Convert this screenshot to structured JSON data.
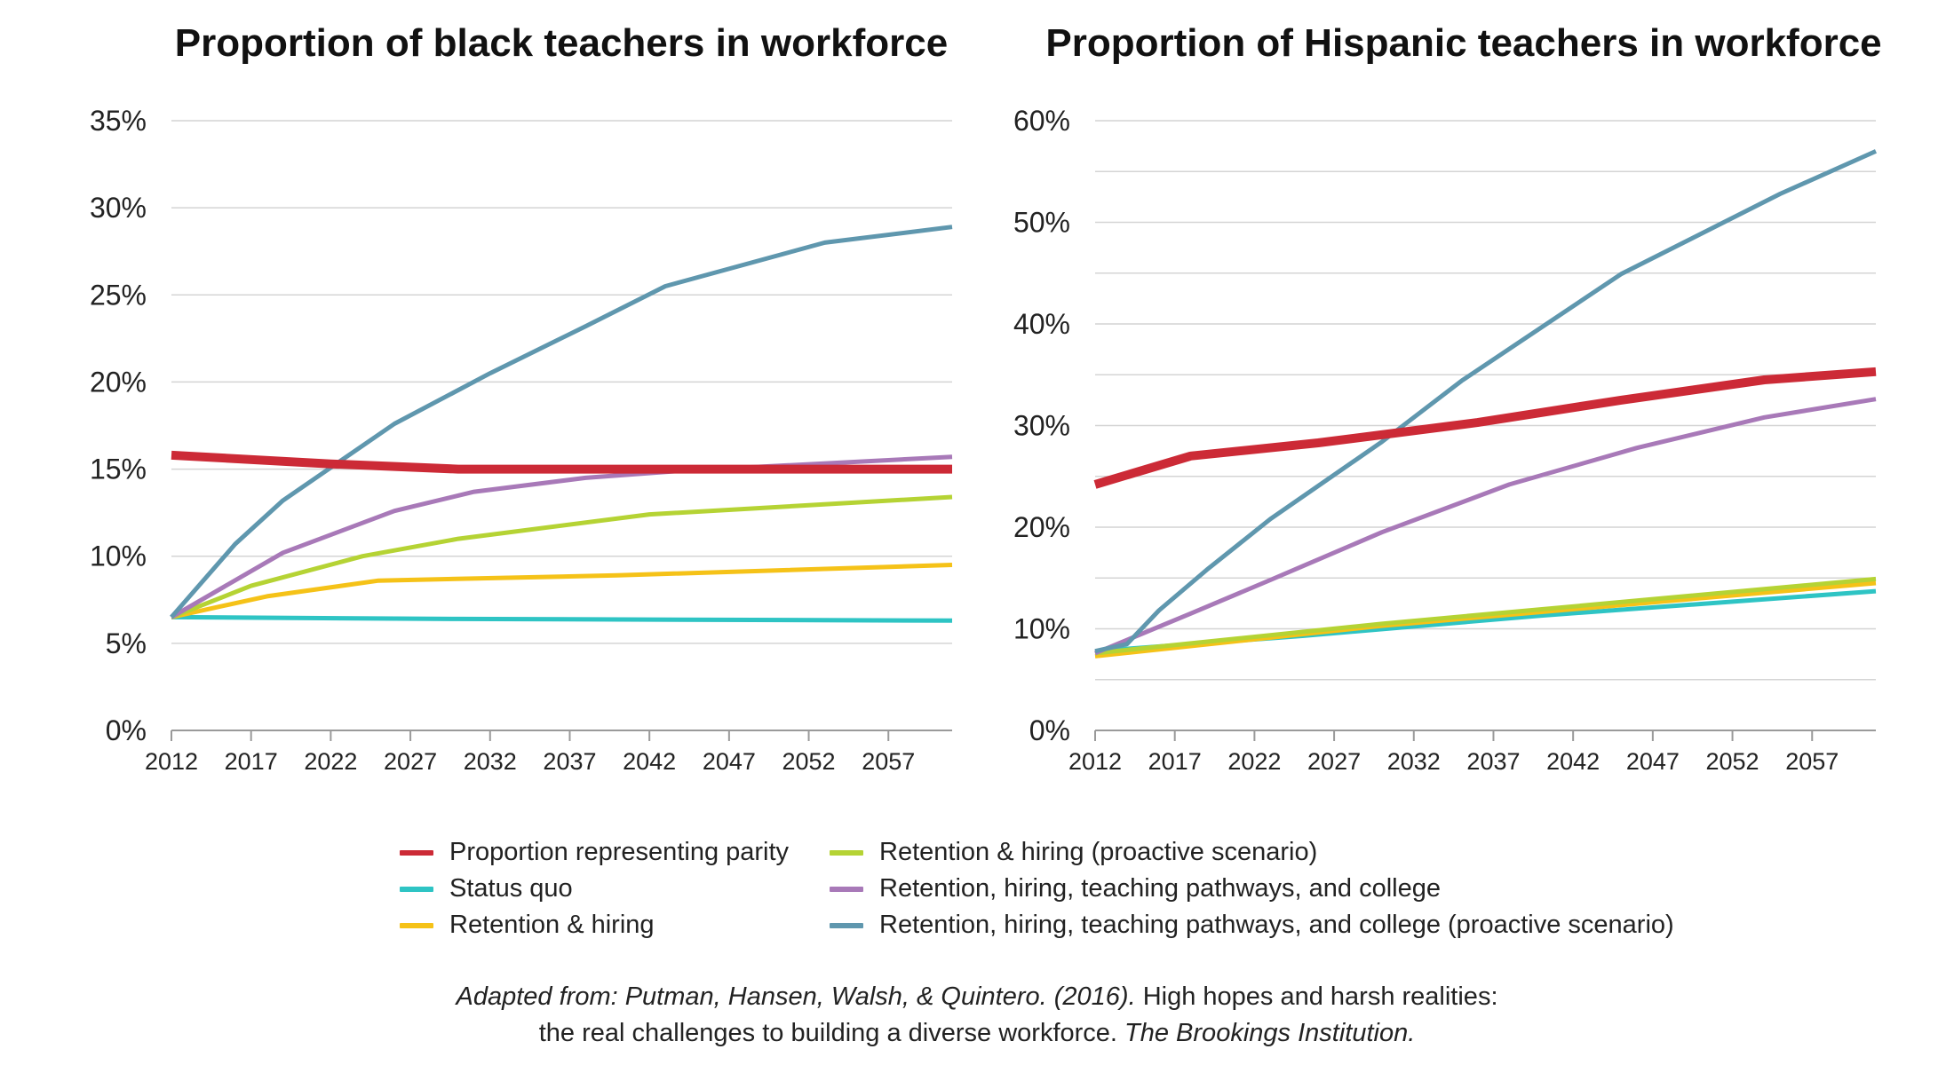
{
  "chart_data": [
    {
      "type": "line",
      "title": "Proportion of black teachers in workforce",
      "xlabel": "",
      "ylabel": "",
      "x_ticks": [
        "2012",
        "2017",
        "2022",
        "2027",
        "2032",
        "2037",
        "2042",
        "2047",
        "2052",
        "2057"
      ],
      "y_ticks": [
        "0%",
        "5%",
        "10%",
        "15%",
        "20%",
        "25%",
        "30%",
        "35%"
      ],
      "xlim": [
        2012,
        2061
      ],
      "ylim": [
        0,
        35
      ],
      "grid": "horizontal",
      "series": [
        {
          "name": "Proportion representing parity",
          "color": "#cc2a36",
          "x": [
            2012,
            2022,
            2030,
            2044,
            2061
          ],
          "y": [
            15.8,
            15.3,
            15.0,
            15.0,
            15.0
          ]
        },
        {
          "name": "Status quo",
          "color": "#2ec4c4",
          "x": [
            2012,
            2030,
            2061
          ],
          "y": [
            6.5,
            6.4,
            6.3
          ]
        },
        {
          "name": "Retention & hiring",
          "color": "#f5c218",
          "x": [
            2012,
            2018,
            2025,
            2040,
            2061
          ],
          "y": [
            6.5,
            7.7,
            8.6,
            8.9,
            9.5
          ]
        },
        {
          "name": "Retention & hiring (proactive scenario)",
          "color": "#b5d334",
          "x": [
            2012,
            2017,
            2024,
            2030,
            2042,
            2061
          ],
          "y": [
            6.5,
            8.3,
            10.0,
            11.0,
            12.4,
            13.4
          ]
        },
        {
          "name": "Retention, hiring, teaching pathways, and college",
          "color": "#a879b8",
          "x": [
            2012,
            2019,
            2026,
            2031,
            2038,
            2044,
            2061
          ],
          "y": [
            6.5,
            10.2,
            12.6,
            13.7,
            14.5,
            14.9,
            15.7
          ]
        },
        {
          "name": "Retention, hiring, teaching pathways, and college (proactive scenario)",
          "color": "#5f97ae",
          "x": [
            2012,
            2016,
            2019,
            2026,
            2032,
            2038,
            2043,
            2053,
            2061
          ],
          "y": [
            6.5,
            10.7,
            13.2,
            17.6,
            20.5,
            23.2,
            25.5,
            28.0,
            28.9
          ]
        }
      ]
    },
    {
      "type": "line",
      "title": "Proportion of Hispanic teachers in workforce",
      "xlabel": "",
      "ylabel": "",
      "x_ticks": [
        "2012",
        "2017",
        "2022",
        "2027",
        "2032",
        "2037",
        "2042",
        "2047",
        "2052",
        "2057"
      ],
      "y_ticks": [
        "0%",
        "10%",
        "20%",
        "30%",
        "40%",
        "50%",
        "60%"
      ],
      "xlim": [
        2012,
        2061
      ],
      "ylim": [
        0,
        60
      ],
      "grid": "horizontal",
      "series": [
        {
          "name": "Proportion representing parity",
          "color": "#cc2a36",
          "x": [
            2012,
            2018,
            2026,
            2036,
            2045,
            2054,
            2061
          ],
          "y": [
            24.2,
            27.0,
            28.3,
            30.3,
            32.5,
            34.5,
            35.3
          ]
        },
        {
          "name": "Status quo",
          "color": "#2ec4c4",
          "x": [
            2012,
            2025,
            2040,
            2061
          ],
          "y": [
            7.8,
            9.3,
            11.3,
            13.7
          ]
        },
        {
          "name": "Retention & hiring",
          "color": "#f5c218",
          "x": [
            2012,
            2030,
            2061
          ],
          "y": [
            7.3,
            10.3,
            14.5
          ]
        },
        {
          "name": "Retention & hiring (proactive scenario)",
          "color": "#b5d334",
          "x": [
            2012,
            2030,
            2061
          ],
          "y": [
            7.6,
            10.5,
            14.9
          ]
        },
        {
          "name": "Retention, hiring, teaching pathways, and college",
          "color": "#a879b8",
          "x": [
            2012,
            2018,
            2023,
            2030,
            2038,
            2046,
            2054,
            2061
          ],
          "y": [
            7.6,
            11.5,
            14.8,
            19.5,
            24.2,
            27.8,
            30.8,
            32.6
          ]
        },
        {
          "name": "Retention, hiring, teaching pathways, and college (proactive scenario)",
          "color": "#5f97ae",
          "x": [
            2012,
            2014,
            2016,
            2019,
            2023,
            2030,
            2035,
            2045,
            2055,
            2061
          ],
          "y": [
            7.8,
            8.5,
            11.8,
            15.8,
            20.8,
            28.4,
            34.4,
            44.9,
            52.8,
            57.0
          ]
        }
      ]
    }
  ],
  "legend": {
    "left": [
      {
        "label": "Proportion representing parity",
        "color": "#cc2a36"
      },
      {
        "label": "Status quo",
        "color": "#2ec4c4"
      },
      {
        "label": "Retention & hiring",
        "color": "#f5c218"
      }
    ],
    "right": [
      {
        "label": "Retention & hiring (proactive scenario)",
        "color": "#b5d334"
      },
      {
        "label": "Retention, hiring, teaching pathways, and college",
        "color": "#a879b8"
      },
      {
        "label": "Retention, hiring, teaching pathways, and college (proactive scenario)",
        "color": "#5f97ae"
      }
    ]
  },
  "source": {
    "line1_italic": "Adapted from: Putman, Hansen, Walsh, & Quintero. (2016).",
    "line1_rest": " High hopes and harsh realities:",
    "line2_start": "the real challenges to building a diverse workforce. ",
    "line2_italic": "The Brookings Institution."
  }
}
